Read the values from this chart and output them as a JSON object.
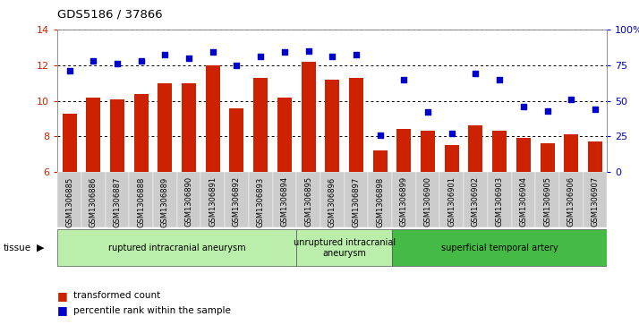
{
  "title": "GDS5186 / 37866",
  "samples": [
    "GSM1306885",
    "GSM1306886",
    "GSM1306887",
    "GSM1306888",
    "GSM1306889",
    "GSM1306890",
    "GSM1306891",
    "GSM1306892",
    "GSM1306893",
    "GSM1306894",
    "GSM1306895",
    "GSM1306896",
    "GSM1306897",
    "GSM1306898",
    "GSM1306899",
    "GSM1306900",
    "GSM1306901",
    "GSM1306902",
    "GSM1306903",
    "GSM1306904",
    "GSM1306905",
    "GSM1306906",
    "GSM1306907"
  ],
  "bar_values": [
    9.3,
    10.2,
    10.1,
    10.4,
    11.0,
    11.0,
    12.0,
    9.6,
    11.3,
    10.2,
    12.2,
    11.2,
    11.3,
    7.2,
    8.4,
    8.3,
    7.5,
    8.6,
    8.3,
    7.9,
    7.6,
    8.1,
    7.7
  ],
  "dot_values": [
    71,
    78,
    76,
    78,
    82,
    80,
    84,
    75,
    81,
    84,
    85,
    81,
    82,
    26,
    65,
    42,
    27,
    69,
    65,
    46,
    43,
    51,
    44
  ],
  "ylim_left": [
    6,
    14
  ],
  "ylim_right": [
    0,
    100
  ],
  "yticks_left": [
    6,
    8,
    10,
    12,
    14
  ],
  "yticks_right": [
    0,
    25,
    50,
    75,
    100
  ],
  "ytick_labels_right": [
    "0",
    "25",
    "50",
    "75",
    "100%"
  ],
  "bar_color": "#cc2200",
  "dot_color": "#0000cc",
  "ruptured_color": "#bbeeaa",
  "unruptured_color": "#bbeeaa",
  "superficial_color": "#44bb44",
  "xticklabel_bg": "#cccccc",
  "tissue_groups": [
    {
      "label": "ruptured intracranial aneurysm",
      "start": 0,
      "end": 9,
      "color": "#bbeeaa"
    },
    {
      "label": "unruptured intracranial\naneurysm",
      "start": 10,
      "end": 13,
      "color": "#bbeeaa"
    },
    {
      "label": "superficial temporal artery",
      "start": 14,
      "end": 22,
      "color": "#44bb44"
    }
  ]
}
